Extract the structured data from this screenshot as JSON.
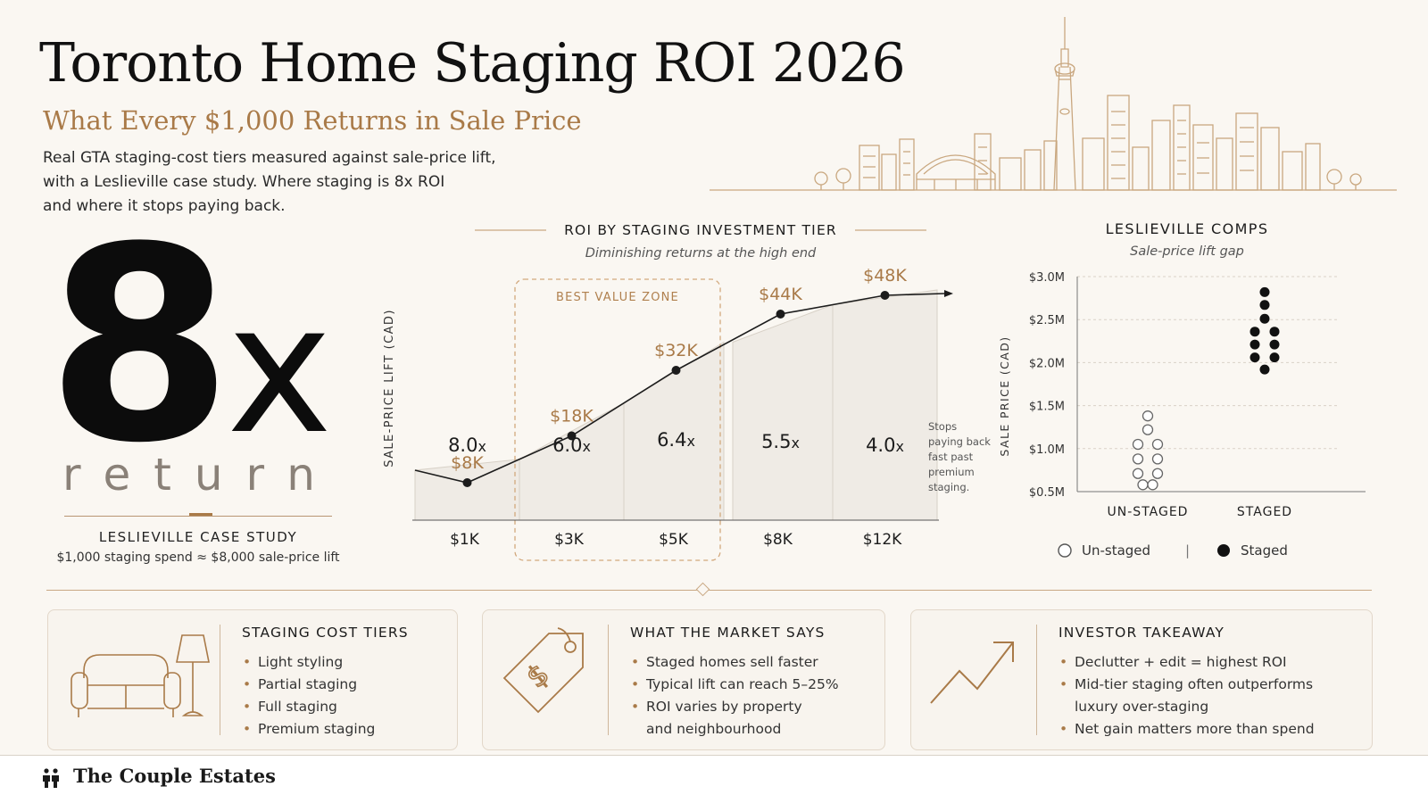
{
  "header": {
    "title": "Toronto Home Staging ROI 2026",
    "subtitle": "What Every $1,000 Returns in Sale Price",
    "intro_lines": [
      "Real GTA staging-cost tiers measured against sale-price lift,",
      "with a Leslieville case study. Where staging is 8x ROI",
      "and where it stops paying back."
    ]
  },
  "hero": {
    "number": "8",
    "suffix": "x",
    "word": "return",
    "case_title": "LESLIEVILLE CASE STUDY",
    "case_text": "$1,000 staging spend ≈ $8,000 sale-price lift"
  },
  "chart_data": [
    {
      "type": "bar",
      "title": "ROI BY STAGING INVESTMENT TIER",
      "subtitle": "Diminishing returns at the high end",
      "ylabel": "SALE-PRICE LIFT (CAD)",
      "categories": [
        "$1K",
        "$3K",
        "$5K",
        "$8K",
        "$12K"
      ],
      "spend": [
        1000,
        3000,
        5000,
        8000,
        12000
      ],
      "lift": [
        8000,
        18000,
        32000,
        44000,
        48000
      ],
      "lift_labels": [
        "$8K",
        "$18K",
        "$32K",
        "$44K",
        "$48K"
      ],
      "roi_labels": [
        "8.0",
        "6.0",
        "6.4",
        "5.5",
        "4.0"
      ],
      "roi_suffix": "x",
      "highlight": {
        "label": "BEST VALUE ZONE",
        "categories": [
          "$3K",
          "$5K"
        ]
      },
      "annotation_lines": [
        "Stops",
        "paying back",
        "fast past",
        "premium",
        "staging."
      ],
      "colors": {
        "line": "#1c1c1c",
        "label": "#a97a48",
        "bar": "#efebe5"
      }
    },
    {
      "type": "scatter",
      "title": "LESLIEVILLE COMPS",
      "subtitle": "Sale-price lift gap",
      "ylabel": "SALE PRICE (CAD)",
      "categories": [
        "UN-STAGED",
        "STAGED"
      ],
      "yticks": [
        "$3.0M",
        "$2.5M",
        "$2.0M",
        "$1.5M",
        "$1.0M",
        "$0.5M"
      ],
      "ylim": [
        0.5,
        3.0
      ],
      "grid": true,
      "series": [
        {
          "name": "Un-staged",
          "category": "UN-STAGED",
          "filled": false,
          "points": [
            [
              0,
              1.38
            ],
            [
              0,
              1.22
            ],
            [
              -1,
              1.05
            ],
            [
              1,
              1.05
            ],
            [
              -1,
              0.88
            ],
            [
              1,
              0.88
            ],
            [
              -1,
              0.71
            ],
            [
              1,
              0.71
            ],
            [
              -0.5,
              0.58
            ],
            [
              0.5,
              0.58
            ]
          ]
        },
        {
          "name": "Staged",
          "category": "STAGED",
          "filled": true,
          "points": [
            [
              0,
              2.82
            ],
            [
              0,
              2.67
            ],
            [
              0,
              2.51
            ],
            [
              -1,
              2.36
            ],
            [
              1,
              2.36
            ],
            [
              -1,
              2.21
            ],
            [
              1,
              2.21
            ],
            [
              -1,
              2.06
            ],
            [
              1,
              2.06
            ],
            [
              0,
              1.92
            ]
          ]
        }
      ],
      "legend": {
        "position": "bottom",
        "separator": "|"
      }
    }
  ],
  "cards": [
    {
      "title": "STAGING COST TIERS",
      "icon": "sofa-lamp-icon",
      "items": [
        "Light styling",
        "Partial staging",
        "Full staging",
        "Premium staging"
      ]
    },
    {
      "title": "WHAT THE MARKET SAYS",
      "icon": "price-tag-icon",
      "items": [
        "Staged homes sell faster",
        "Typical lift can reach 5–25%",
        "ROI varies by property",
        "and neighbourhood"
      ]
    },
    {
      "title": "INVESTOR TAKEAWAY",
      "icon": "trend-up-icon",
      "items": [
        "Declutter + edit = highest ROI",
        "Mid-tier staging often outperforms",
        "luxury over-staging",
        "Net gain matters more than spend"
      ]
    }
  ],
  "footer": {
    "brand": "The Couple Estates",
    "icon": "couple-icon"
  }
}
